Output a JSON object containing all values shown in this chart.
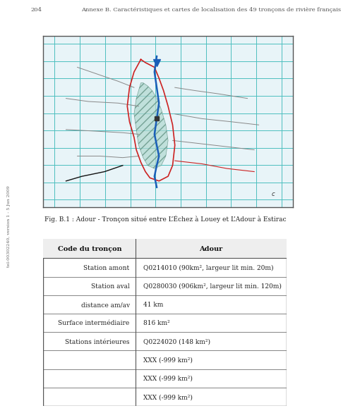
{
  "page_number": "204",
  "header_text": "Annexe B. Caractéristiques et cartes de localisation des 49 tronçons de rivière français",
  "fig_caption": "Fig. B.1 : Adour - Tronçon situé entre L’Échez à Louey et L’Adour à Estirac",
  "side_text": "tel-00302240, version 1 - 5 Jun 2009",
  "table_header_col1": "Code du tronçon",
  "table_header_col2": "Adour",
  "table_rows": [
    [
      "Station amont",
      "Q0214010 (90km², largeur lit min. 20m)"
    ],
    [
      "Station aval",
      "Q0280030 (906km², largeur lit min. 120m)"
    ],
    [
      "distance am/av",
      "41 km"
    ],
    [
      "Surface intermédiaire",
      "816 km²"
    ],
    [
      "Stations intérieures",
      "Q0224020 (148 km²)"
    ],
    [
      "",
      "XXX (-999 km²)"
    ],
    [
      "",
      "XXX (-999 km²)"
    ],
    [
      "",
      "XXX (-999 km²)"
    ]
  ],
  "bg_color": "#ffffff",
  "page_bg": "#f0f4f8",
  "header_line_color": "#aaaaaa",
  "table_border_color": "#555555",
  "header_row_bg": "#e8e8e8",
  "map_bg": "#e8f4f8",
  "map_grid_color": "#4dbfbf",
  "map_border_color": "#555555"
}
